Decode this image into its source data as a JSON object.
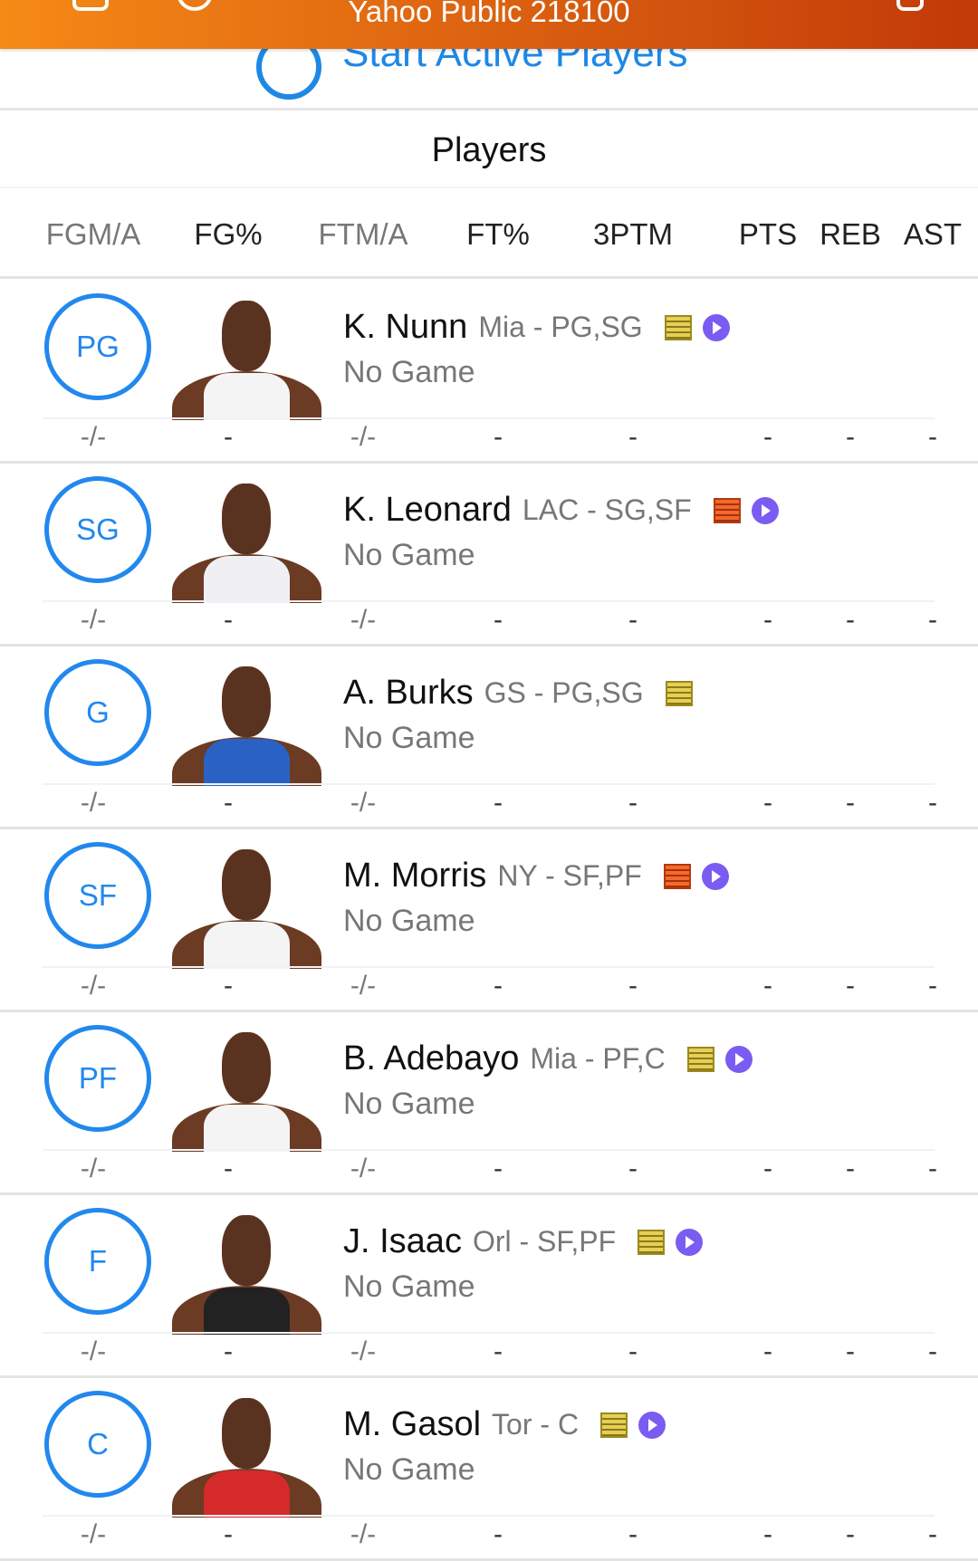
{
  "header": {
    "title": "Yahoo Public 218100"
  },
  "start_active": {
    "label": "Start Active Players"
  },
  "section_title": "Players",
  "columns": [
    "FGM/A",
    "FG%",
    "FTM/A",
    "FT%",
    "3PTM",
    "PTS",
    "REB",
    "AST"
  ],
  "colors": {
    "accent": "#2288ee",
    "header_start": "#f68a16",
    "header_end": "#c23a08",
    "note": "#e6cf55",
    "note_hot": "#f26a2c",
    "video": "#7a5cf2"
  },
  "players": [
    {
      "pos": "PG",
      "name": "K. Nunn",
      "team": "Mia - PG,SG",
      "status": "No Game",
      "note": "note-icon",
      "video": true,
      "jersey": "#f4f4f4",
      "stats": [
        "-/-",
        "-",
        "-/-",
        "-",
        "-",
        "-",
        "-",
        "-"
      ]
    },
    {
      "pos": "SG",
      "name": "K. Leonard",
      "team": "LAC - SG,SF",
      "status": "No Game",
      "note": "hot-note-icon",
      "video": true,
      "jersey": "#f0f0f4",
      "stats": [
        "-/-",
        "-",
        "-/-",
        "-",
        "-",
        "-",
        "-",
        "-"
      ]
    },
    {
      "pos": "G",
      "name": "A. Burks",
      "team": "GS - PG,SG",
      "status": "No Game",
      "note": "note-icon",
      "video": false,
      "jersey": "#2a62c4",
      "stats": [
        "-/-",
        "-",
        "-/-",
        "-",
        "-",
        "-",
        "-",
        "-"
      ]
    },
    {
      "pos": "SF",
      "name": "M. Morris",
      "team": "NY - SF,PF",
      "status": "No Game",
      "note": "hot-note-icon",
      "video": true,
      "jersey": "#f4f4f4",
      "stats": [
        "-/-",
        "-",
        "-/-",
        "-",
        "-",
        "-",
        "-",
        "-"
      ]
    },
    {
      "pos": "PF",
      "name": "B. Adebayo",
      "team": "Mia - PF,C",
      "status": "No Game",
      "note": "note-icon",
      "video": true,
      "jersey": "#f4f4f4",
      "stats": [
        "-/-",
        "-",
        "-/-",
        "-",
        "-",
        "-",
        "-",
        "-"
      ]
    },
    {
      "pos": "F",
      "name": "J. Isaac",
      "team": "Orl - SF,PF",
      "status": "No Game",
      "note": "note-icon",
      "video": true,
      "jersey": "#222",
      "stats": [
        "-/-",
        "-",
        "-/-",
        "-",
        "-",
        "-",
        "-",
        "-"
      ]
    },
    {
      "pos": "C",
      "name": "M. Gasol",
      "team": "Tor - C",
      "status": "No Game",
      "note": "note-icon",
      "video": true,
      "jersey": "#d42a2a",
      "stats": [
        "-/-",
        "-",
        "-/-",
        "-",
        "-",
        "-",
        "-",
        "-"
      ]
    }
  ]
}
